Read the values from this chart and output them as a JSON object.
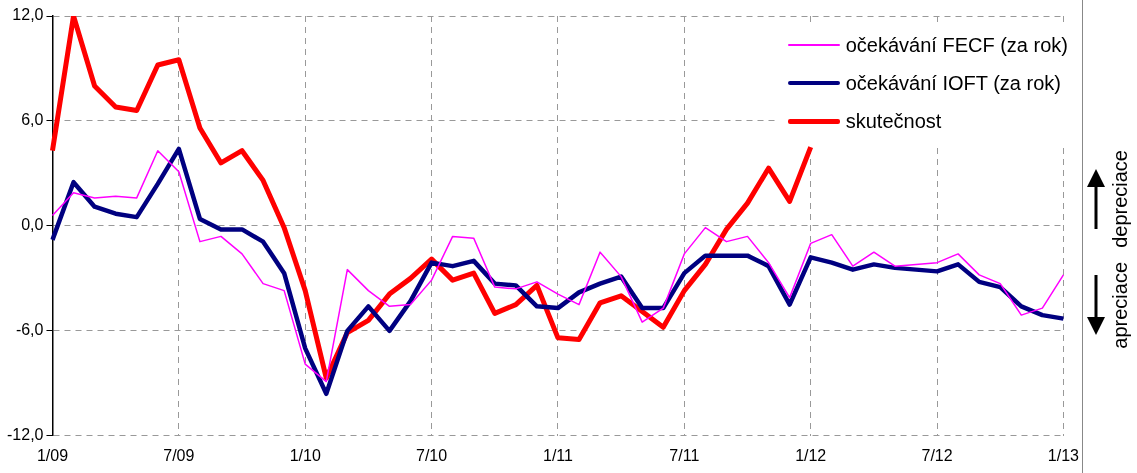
{
  "chart_data": {
    "type": "line",
    "categories": [
      "1/09",
      null,
      null,
      null,
      null,
      null,
      "7/09",
      null,
      null,
      null,
      null,
      null,
      "1/10",
      null,
      null,
      null,
      null,
      null,
      "7/10",
      null,
      null,
      null,
      null,
      null,
      "1/11",
      null,
      null,
      null,
      null,
      null,
      "7/11",
      null,
      null,
      null,
      null,
      null,
      "1/12",
      null,
      null,
      null,
      null,
      null,
      "7/12",
      null,
      null,
      null,
      null,
      null,
      "1/13"
    ],
    "series": [
      {
        "name": "očekávání FECF (za rok)",
        "color": "#ff00ff",
        "values": [
          0.6,
          1.9,
          1.6,
          1.7,
          1.6,
          4.3,
          3.1,
          -0.9,
          -0.6,
          -1.6,
          -3.3,
          -3.7,
          -7.9,
          -8.9,
          -2.5,
          -3.7,
          -4.6,
          -4.5,
          -3.1,
          -0.6,
          -0.7,
          -3.5,
          -3.6,
          -3.2,
          -3.9,
          -4.5,
          -1.5,
          -2.9,
          -5.5,
          -4.7,
          -1.6,
          -0.1,
          -0.9,
          -0.6,
          -2.1,
          -4.1,
          -1.0,
          -0.5,
          -2.3,
          -1.5,
          -2.3,
          -2.2,
          -2.1,
          -1.6,
          -2.8,
          -3.3,
          -5.1,
          -4.7,
          -2.8
        ]
      },
      {
        "name": "očekávání IOFT (za rok)",
        "color": "#000080",
        "values": [
          -0.8,
          2.5,
          1.1,
          0.7,
          0.5,
          2.4,
          4.4,
          0.4,
          -0.2,
          -0.2,
          -0.9,
          -2.7,
          -7.0,
          -9.6,
          -6.0,
          -4.6,
          -6.0,
          -4.3,
          -2.1,
          -2.3,
          -2.0,
          -3.3,
          -3.4,
          -4.6,
          -4.7,
          -3.8,
          -3.3,
          -2.9,
          -4.7,
          -4.7,
          -2.7,
          -1.7,
          -1.7,
          -1.7,
          -2.3,
          -4.5,
          -1.8,
          -2.1,
          -2.5,
          -2.2,
          -2.4,
          -2.5,
          -2.6,
          -2.2,
          -3.2,
          -3.5,
          -4.6,
          -5.1,
          -5.3
        ]
      },
      {
        "name": "skutečnost",
        "color": "#ff0000",
        "values": [
          4.3,
          12.0,
          8.0,
          6.8,
          6.6,
          9.2,
          9.5,
          5.6,
          3.6,
          4.3,
          2.6,
          -0.1,
          -3.7,
          -8.7,
          -6.1,
          -5.4,
          -3.9,
          -3.0,
          -1.9,
          -3.1,
          -2.7,
          -5.0,
          -4.5,
          -3.4,
          -6.4,
          -6.5,
          -4.4,
          -4.0,
          -4.9,
          -5.8,
          -3.7,
          -2.2,
          -0.2,
          1.3,
          3.3,
          1.4,
          4.5,
          null,
          null,
          null,
          null,
          null,
          null,
          null,
          null,
          null,
          null,
          null,
          null
        ]
      }
    ],
    "ylim": [
      -12,
      12
    ],
    "yticks": [
      {
        "value": -12,
        "label": "-12,0"
      },
      {
        "value": -6,
        "label": "-6,0"
      },
      {
        "value": 0,
        "label": "0,0"
      },
      {
        "value": 6,
        "label": "6,0"
      },
      {
        "value": 12,
        "label": "12,0"
      }
    ],
    "grid": true,
    "legend": "top right",
    "annotations": [
      "depreciace",
      "apreciace"
    ]
  }
}
